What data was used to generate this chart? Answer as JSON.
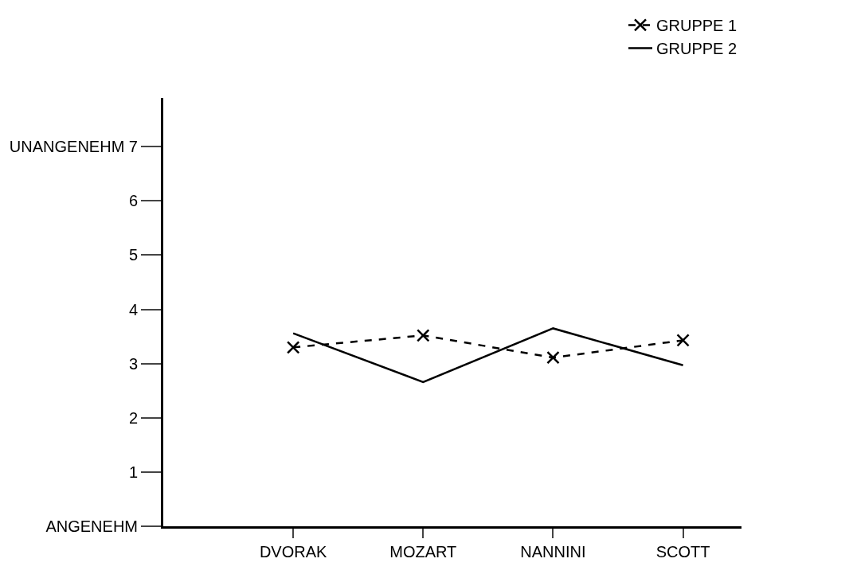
{
  "chart_data": {
    "type": "line",
    "categories": [
      "DVORAK",
      "MOZART",
      "NANNINI",
      "SCOTT"
    ],
    "series": [
      {
        "name": "GRUPPE 1",
        "color": "#000000",
        "values": [
          3.3,
          3.52,
          3.11,
          3.43
        ],
        "line_style": "dashed",
        "marker": "cross"
      },
      {
        "name": "GRUPPE 2",
        "color": "#000000",
        "values": [
          3.56,
          2.66,
          3.65,
          2.97
        ],
        "line_style": "solid",
        "marker": "none"
      }
    ],
    "ylim": [
      0,
      7.9
    ],
    "yticks": [
      {
        "value": 0,
        "label": "ANGENEHM"
      },
      1,
      2,
      3,
      4,
      5,
      6,
      {
        "value": 7,
        "label": "UNANGENEHM 7"
      }
    ],
    "legend": "top right"
  }
}
